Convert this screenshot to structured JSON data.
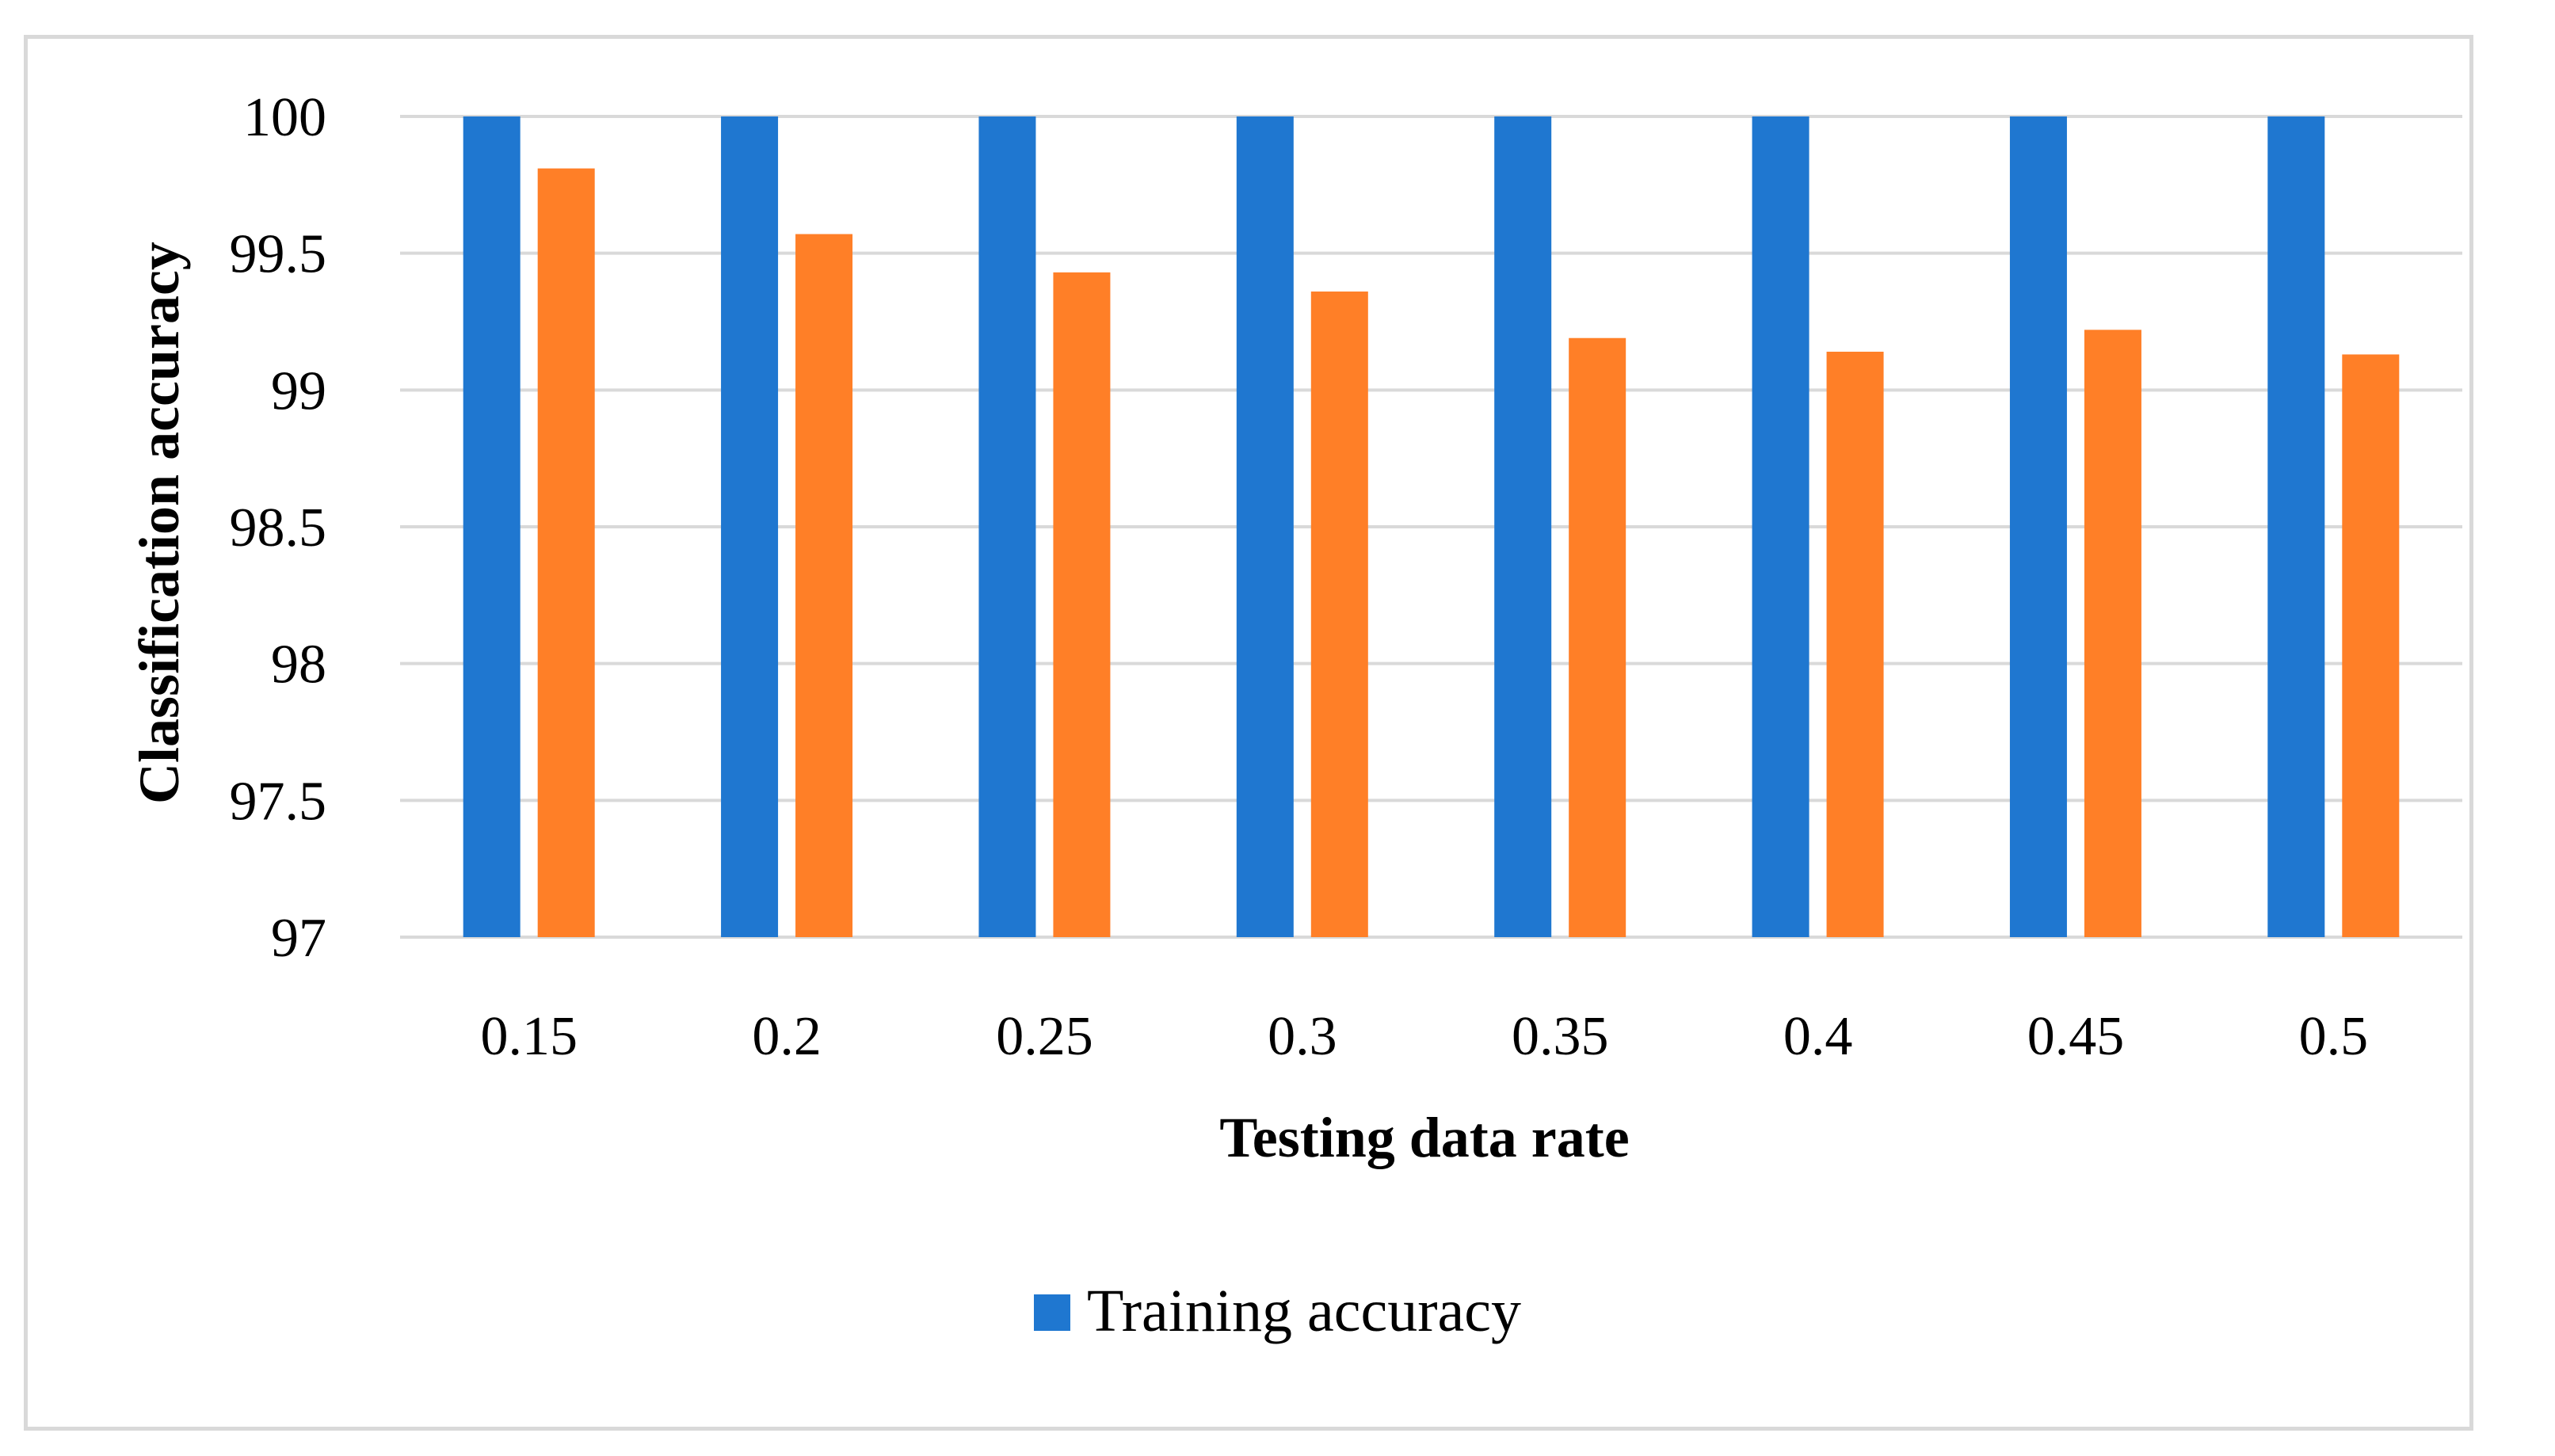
{
  "chart_data": {
    "type": "bar",
    "title": "",
    "xlabel": "Testing data rate",
    "ylabel": "Classification accuracy",
    "ylim": [
      97,
      100
    ],
    "yticks": [
      97,
      97.5,
      98,
      98.5,
      99,
      99.5,
      100
    ],
    "ytick_labels": [
      "97",
      "97.5",
      "98",
      "98.5",
      "99",
      "99.5",
      "100"
    ],
    "grid": true,
    "categories": [
      "0.15",
      "0.2",
      "0.25",
      "0.3",
      "0.35",
      "0.4",
      "0.45",
      "0.5"
    ],
    "series": [
      {
        "name": "Training accuracy",
        "color": "#1f77d0",
        "values": [
          100,
          100,
          100,
          100,
          100,
          100,
          100,
          100
        ]
      },
      {
        "name": "",
        "color": "#ff7f27",
        "values": [
          99.81,
          99.57,
          99.43,
          99.36,
          99.19,
          99.14,
          99.22,
          99.13
        ]
      }
    ],
    "legend": {
      "position": "bottom",
      "entries": [
        "Training accuracy"
      ]
    }
  }
}
